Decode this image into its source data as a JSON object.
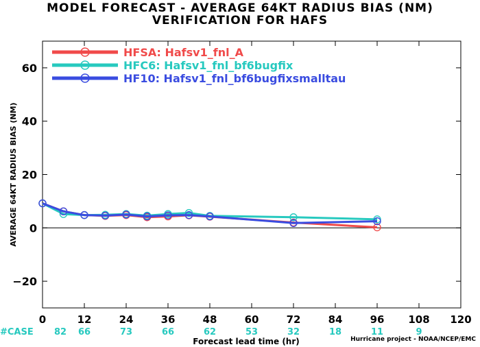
{
  "header": {
    "title_line1": "MODEL FORECAST - AVERAGE 64KT RADIUS BIAS (NM)",
    "title_line2": "VERIFICATION FOR HAFS"
  },
  "footer": {
    "credit": "Hurricane project - NOAA/NCEP/EMC"
  },
  "colors": {
    "HFSA": "#f04a4a",
    "HFC6": "#27c9bf",
    "HF10": "#3a4ce0",
    "zero_line": "#000000"
  },
  "chart_data": {
    "type": "line",
    "title": "MODEL FORECAST - AVERAGE 64KT RADIUS BIAS (NM)",
    "subtitle": "VERIFICATION FOR HAFS",
    "xlabel": "Forecast lead time (hr)",
    "ylabel": "AVERAGE 64KT RADIUS BIAS (NM)",
    "xlim": [
      0,
      120
    ],
    "ylim": [
      -30,
      70
    ],
    "xticks": [
      0,
      12,
      24,
      36,
      48,
      60,
      72,
      84,
      96,
      108,
      120
    ],
    "yticks": [
      -20,
      0,
      20,
      40,
      60
    ],
    "grid": false,
    "legend_position": "top-left",
    "case_label": "#CASE",
    "cases": [
      {
        "x": 0,
        "n": "82"
      },
      {
        "x": 12,
        "n": "66"
      },
      {
        "x": 24,
        "n": "73"
      },
      {
        "x": 36,
        "n": "66"
      },
      {
        "x": 48,
        "n": "62"
      },
      {
        "x": 60,
        "n": "53"
      },
      {
        "x": 72,
        "n": "32"
      },
      {
        "x": 84,
        "n": "18"
      },
      {
        "x": 96,
        "n": "11"
      },
      {
        "x": 108,
        "n": "9"
      }
    ],
    "series": [
      {
        "name": "HFSA: Hafsv1_fnl_A",
        "color": "#f04a4a",
        "x": [
          0,
          6,
          12,
          18,
          24,
          30,
          36,
          42,
          48,
          72,
          96
        ],
        "y": [
          9.2,
          6.2,
          4.8,
          4.5,
          4.8,
          4.0,
          4.3,
          4.7,
          4.2,
          2.0,
          0.2
        ]
      },
      {
        "name": "HFC6: Hafsv1_fnl_bf6bugfix",
        "color": "#27c9bf",
        "x": [
          0,
          6,
          12,
          18,
          24,
          30,
          36,
          42,
          48,
          72,
          96
        ],
        "y": [
          9.2,
          5.2,
          4.8,
          4.9,
          5.2,
          4.6,
          5.2,
          5.6,
          4.5,
          4.0,
          3.2
        ]
      },
      {
        "name": "HF10: Hafsv1_fnl_bf6bugfixsmalltau",
        "color": "#3a4ce0",
        "x": [
          0,
          6,
          12,
          18,
          24,
          30,
          36,
          42,
          48,
          72,
          96
        ],
        "y": [
          9.2,
          6.2,
          4.8,
          4.6,
          5.0,
          4.3,
          4.7,
          4.8,
          4.3,
          1.8,
          2.5
        ]
      }
    ]
  }
}
